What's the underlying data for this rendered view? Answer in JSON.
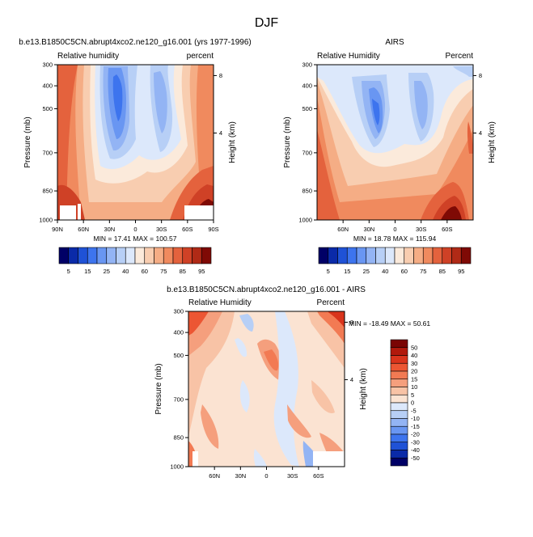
{
  "figure_title": "DJF",
  "chart_data": [
    {
      "type": "heatmap",
      "title": "b.e13.B1850C5CN.abrupt4xco2.ne120_g16.001 (yrs 1977-1996)",
      "left_label": "Relative humidity",
      "right_label": "percent",
      "ylabel": "Pressure (mb)",
      "y2label": "Height (km)",
      "y_ticks": [
        "300",
        "400",
        "500",
        "700",
        "850",
        "1000"
      ],
      "y2_ticks": [
        "8",
        "4"
      ],
      "x_ticks": [
        "90N",
        "60N",
        "30N",
        "0",
        "30S",
        "60S",
        "90S"
      ],
      "min_max": "MIN =  17.41   MAX = 100.57",
      "colorbar_labels": [
        "5",
        "15",
        "25",
        "40",
        "60",
        "75",
        "85",
        "95"
      ]
    },
    {
      "type": "heatmap",
      "title": "AIRS",
      "left_label": "Relative Humidity",
      "right_label": "Percent",
      "ylabel": "Pressure (mb)",
      "y2label": "Height (km)",
      "y_ticks": [
        "300",
        "400",
        "500",
        "700",
        "850",
        "1000"
      ],
      "y2_ticks": [
        "8",
        "4"
      ],
      "x_ticks": [
        "60N",
        "30N",
        "0",
        "30S",
        "60S"
      ],
      "min_max": "MIN =  18.78   MAX = 115.94",
      "colorbar_labels": [
        "5",
        "15",
        "25",
        "40",
        "60",
        "75",
        "85",
        "95"
      ]
    },
    {
      "type": "heatmap",
      "title": "b.e13.B1850C5CN.abrupt4xco2.ne120_g16.001 - AIRS",
      "left_label": "Relative Humidity",
      "right_label": "Percent",
      "ylabel": "Pressure (mb)",
      "y2label": "Height (km)",
      "y_ticks": [
        "300",
        "400",
        "500",
        "700",
        "850",
        "1000"
      ],
      "y2_ticks": [
        "8",
        "4"
      ],
      "x_ticks": [
        "60N",
        "30N",
        "0",
        "30S",
        "60S"
      ],
      "min_max": "MIN = -18.49   MAX =  50.61",
      "colorbar_labels": [
        "50",
        "40",
        "30",
        "20",
        "15",
        "10",
        "5",
        "0",
        "-5",
        "-10",
        "-15",
        "-20",
        "-30",
        "-40",
        "-50"
      ]
    }
  ],
  "palettes": {
    "sequential": [
      "#000066",
      "#0a2aa8",
      "#1f52d6",
      "#3d74ee",
      "#6996f2",
      "#93b4f4",
      "#b7cff6",
      "#dce8fb",
      "#fbeadb",
      "#f8cdb0",
      "#f5ad85",
      "#f08a5e",
      "#e4623d",
      "#cf4126",
      "#b02a16",
      "#7f0a05"
    ],
    "diff": [
      "#7a0403",
      "#b1190c",
      "#d9341c",
      "#ec5633",
      "#f27a53",
      "#f59f7d",
      "#f8c3a6",
      "#fbe3d2",
      "#dce8fb",
      "#b7cff6",
      "#93b4f4",
      "#6996f2",
      "#3d74ee",
      "#1f52d6",
      "#0a2aa8",
      "#000066"
    ]
  }
}
